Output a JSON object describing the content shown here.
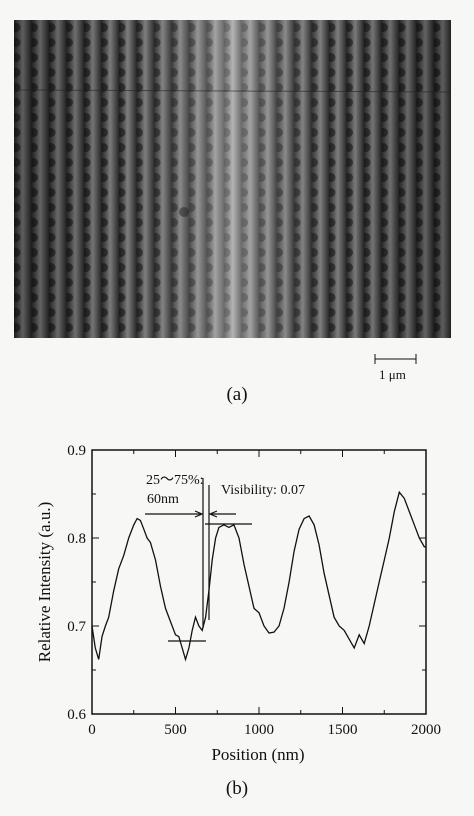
{
  "figure": {
    "panel_a_label": "(a)",
    "panel_b_label": "(b)",
    "scale_bar_label": "1 μm"
  },
  "chart_data": {
    "type": "line",
    "xlabel": "Position (nm)",
    "ylabel": "Relative Intensity (a.u.)",
    "xlim": [
      0,
      2000
    ],
    "ylim": [
      0.6,
      0.9
    ],
    "xticks": [
      "0",
      "500",
      "1000",
      "1500",
      "2000"
    ],
    "yticks": [
      "0.6",
      "0.7",
      "0.8",
      "0.9"
    ],
    "grid": false,
    "annotations": {
      "width_label_line1": "25～75%:",
      "width_label_line2": "60nm",
      "visibility_label": "Visibility: 0.07"
    },
    "series": [
      {
        "x": [
          0,
          20,
          40,
          60,
          80,
          100,
          130,
          160,
          190,
          220,
          250,
          270,
          290,
          310,
          330,
          350,
          380,
          410,
          440,
          470,
          500,
          520,
          540,
          560,
          580,
          600,
          620,
          640,
          660,
          680,
          700,
          720,
          740,
          760,
          790,
          820,
          850,
          880,
          910,
          940,
          970,
          1000,
          1030,
          1060,
          1090,
          1120,
          1150,
          1180,
          1210,
          1240,
          1270,
          1300,
          1330,
          1360,
          1390,
          1420,
          1450,
          1480,
          1510,
          1540,
          1570,
          1600,
          1630,
          1660,
          1690,
          1720,
          1750,
          1780,
          1810,
          1840,
          1870,
          1900,
          1930,
          1960,
          1990,
          2000
        ],
        "values": [
          0.7,
          0.675,
          0.662,
          0.688,
          0.7,
          0.71,
          0.74,
          0.765,
          0.78,
          0.8,
          0.815,
          0.822,
          0.82,
          0.81,
          0.8,
          0.795,
          0.775,
          0.745,
          0.72,
          0.705,
          0.69,
          0.688,
          0.675,
          0.662,
          0.675,
          0.695,
          0.71,
          0.7,
          0.695,
          0.71,
          0.74,
          0.775,
          0.8,
          0.812,
          0.815,
          0.812,
          0.815,
          0.8,
          0.77,
          0.745,
          0.72,
          0.715,
          0.7,
          0.692,
          0.693,
          0.7,
          0.72,
          0.75,
          0.785,
          0.81,
          0.822,
          0.825,
          0.815,
          0.792,
          0.76,
          0.735,
          0.71,
          0.7,
          0.695,
          0.685,
          0.675,
          0.69,
          0.68,
          0.7,
          0.725,
          0.75,
          0.775,
          0.8,
          0.83,
          0.852,
          0.845,
          0.83,
          0.815,
          0.8,
          0.79,
          0.79
        ]
      }
    ]
  }
}
